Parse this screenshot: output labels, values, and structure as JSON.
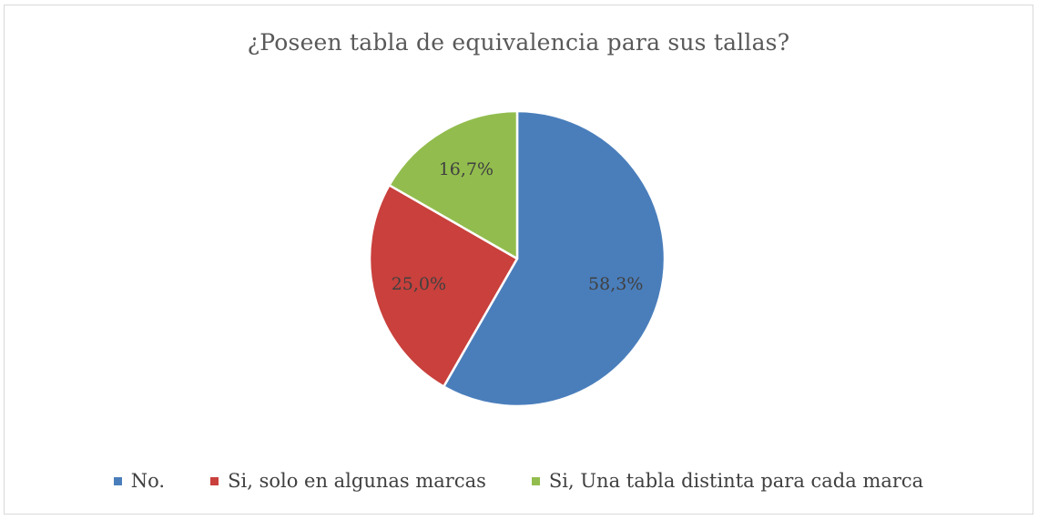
{
  "chart_data": {
    "type": "pie",
    "title": "¿Poseen tabla de equivalencia para sus tallas?",
    "slices": [
      {
        "label": "No.",
        "value": 58.3,
        "value_label": "58,3%",
        "color": "#4a7ebb"
      },
      {
        "label": "Si, solo en algunas marcas",
        "value": 25.0,
        "value_label": "25,0%",
        "color": "#c9403c"
      },
      {
        "label": "Si, Una tabla distinta para cada marca",
        "value": 16.7,
        "value_label": "16,7%",
        "color": "#92bd4e"
      }
    ],
    "start_angle": "12 o'clock",
    "direction": "clockwise",
    "legend_position": "bottom"
  }
}
